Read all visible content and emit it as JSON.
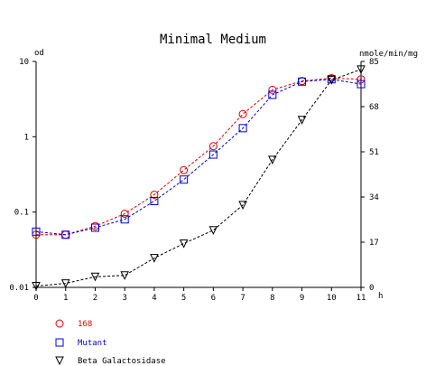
{
  "chart_data": {
    "type": "line",
    "title": "Minimal Medium",
    "x_unit_label": "h",
    "left_axis_label": "od",
    "right_axis_label": "nmole/min/mg",
    "x": [
      0,
      1,
      2,
      3,
      4,
      5,
      6,
      7,
      8,
      9,
      10,
      11
    ],
    "xlim": [
      0,
      11
    ],
    "left_scale": "log",
    "left_lim": [
      0.01,
      10
    ],
    "left_ticks": [
      "10",
      "1",
      "0.1",
      "0.01"
    ],
    "right_lim": [
      0,
      85
    ],
    "right_ticks": [
      "85",
      "68",
      "51",
      "34",
      "17",
      "0"
    ],
    "x_ticks": [
      "0",
      "1",
      "2",
      "3",
      "4",
      "5",
      "6",
      "7",
      "8",
      "9",
      "10",
      "11"
    ],
    "series": [
      {
        "name": "168",
        "axis": "left",
        "color": "#e00000",
        "marker": "circle",
        "values": [
          0.05,
          0.05,
          0.065,
          0.095,
          0.17,
          0.36,
          0.75,
          2.0,
          4.2,
          5.5,
          6.0,
          5.8
        ]
      },
      {
        "name": "Mutant",
        "axis": "left",
        "color": "#0000e0",
        "marker": "square",
        "values": [
          0.055,
          0.05,
          0.062,
          0.08,
          0.14,
          0.27,
          0.58,
          1.3,
          3.6,
          5.4,
          5.8,
          5.0
        ]
      },
      {
        "name": "Beta Galactosidase",
        "axis": "right",
        "color": "#000000",
        "marker": "triangle-down",
        "values": [
          0.5,
          1.5,
          4,
          4.5,
          11,
          16.5,
          21.5,
          31,
          48,
          63,
          78,
          82
        ]
      }
    ],
    "grid": false,
    "legend_position": "bottom-left"
  }
}
